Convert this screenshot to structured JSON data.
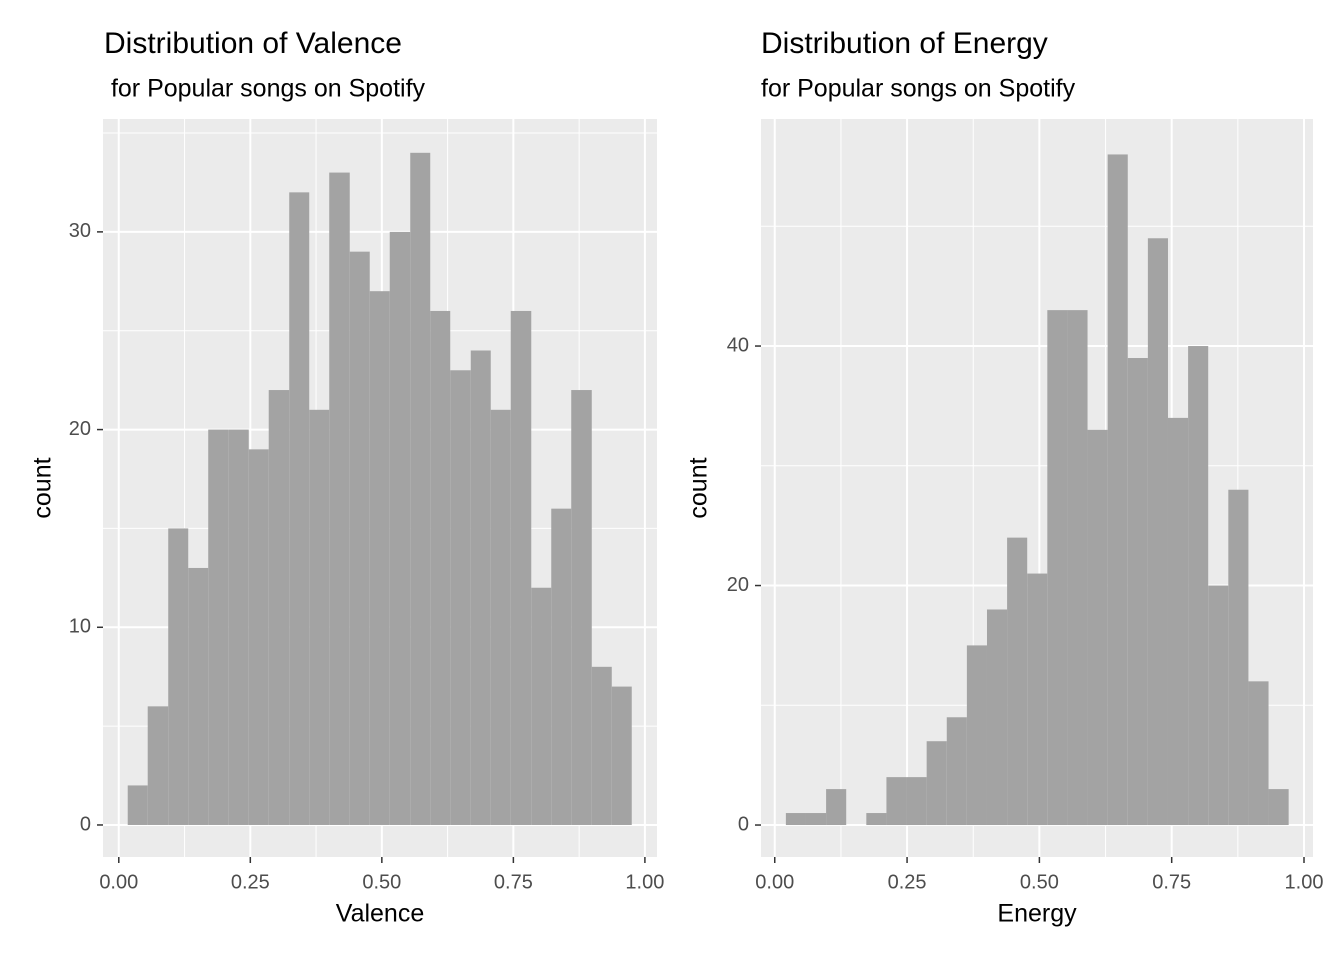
{
  "chart_data": [
    {
      "type": "histogram",
      "title": "Distribution of Valence",
      "subtitle": " for Popular songs on Spotify",
      "xlabel": "Valence",
      "ylabel": "count",
      "color": "#a3a3a3",
      "grid": true,
      "bins": [
        0.017,
        0.055,
        0.094,
        0.132,
        0.17,
        0.209,
        0.247,
        0.285,
        0.324,
        0.362,
        0.4,
        0.439,
        0.477,
        0.515,
        0.554,
        0.592,
        0.63,
        0.669,
        0.707,
        0.745,
        0.784,
        0.822,
        0.86,
        0.899,
        0.937,
        0.975
      ],
      "values": [
        2,
        6,
        15,
        13,
        20,
        20,
        19,
        22,
        32,
        21,
        33,
        29,
        27,
        30,
        34,
        26,
        23,
        24,
        21,
        26,
        12,
        16,
        22,
        8,
        7
      ],
      "xlim": [
        -0.03,
        1.023
      ],
      "ylim": [
        -1.62,
        35.71
      ],
      "xticks": [
        {
          "value": 0,
          "label": "0.00"
        },
        {
          "value": 0.25,
          "label": "0.25"
        },
        {
          "value": 0.5,
          "label": "0.50"
        },
        {
          "value": 0.75,
          "label": "0.75"
        },
        {
          "value": 1,
          "label": "1.00"
        }
      ],
      "yticks": [
        0,
        10,
        20,
        30
      ]
    },
    {
      "type": "histogram",
      "title": "Distribution of Energy",
      "subtitle": "for Popular songs on Spotify",
      "xlabel": "Energy",
      "ylabel": "count",
      "color": "#a3a3a3",
      "grid": true,
      "bins": [
        0.021,
        0.059,
        0.097,
        0.135,
        0.173,
        0.211,
        0.249,
        0.287,
        0.325,
        0.363,
        0.401,
        0.439,
        0.477,
        0.515,
        0.553,
        0.591,
        0.629,
        0.667,
        0.705,
        0.743,
        0.781,
        0.819,
        0.857,
        0.895,
        0.933,
        0.971
      ],
      "values": [
        1,
        1,
        3,
        0,
        1,
        4,
        4,
        7,
        9,
        15,
        18,
        24,
        21,
        43,
        43,
        33,
        56,
        39,
        49,
        34,
        40,
        20,
        28,
        12,
        3
      ],
      "xlim": [
        -0.026,
        1.017
      ],
      "ylim": [
        -2.67,
        58.96
      ],
      "xticks": [
        {
          "value": 0,
          "label": "0.00"
        },
        {
          "value": 0.25,
          "label": "0.25"
        },
        {
          "value": 0.5,
          "label": "0.50"
        },
        {
          "value": 0.75,
          "label": "0.75"
        },
        {
          "value": 1,
          "label": "1.00"
        }
      ],
      "yticks": [
        0,
        20,
        40
      ]
    }
  ]
}
